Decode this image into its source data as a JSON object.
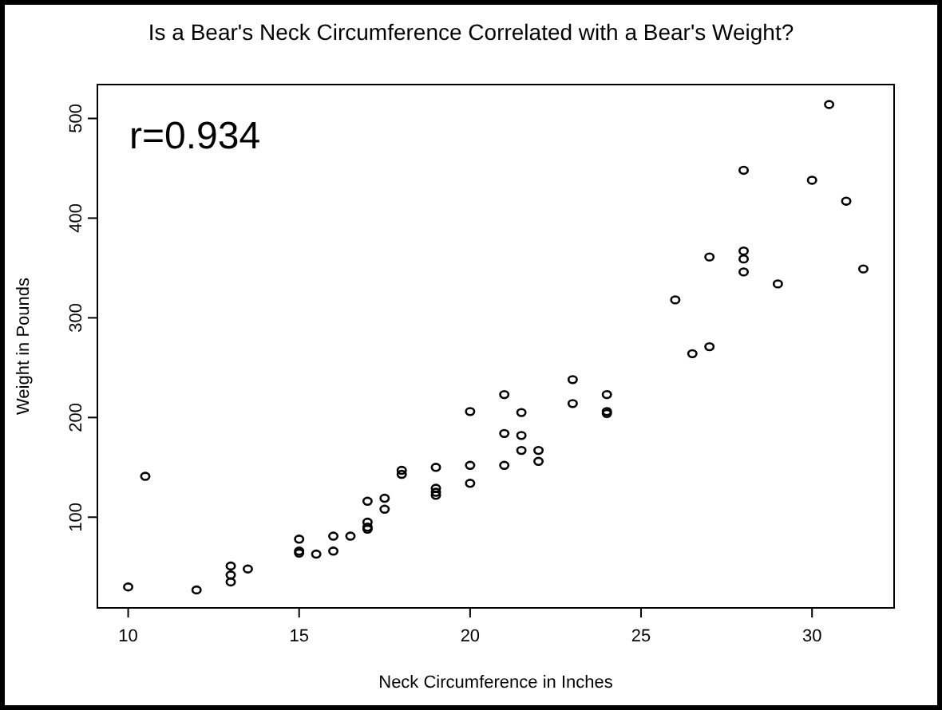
{
  "chart_data": {
    "type": "scatter",
    "title": "Is a Bear's Neck Circumference Correlated with a Bear's Weight?",
    "xlabel": "Neck Circumference in Inches",
    "ylabel": "Weight in Pounds",
    "annotations": [
      "r=0.934"
    ],
    "xlim": [
      9.1,
      32.4
    ],
    "ylim": [
      9,
      534
    ],
    "xticks": [
      10,
      15,
      20,
      25,
      30
    ],
    "yticks": [
      100,
      200,
      300,
      400,
      500
    ],
    "grid": false,
    "marker": "circle",
    "series": [
      {
        "color": "#000000",
        "x": [
          10,
          10.5,
          12,
          13,
          13,
          13,
          13.5,
          15,
          15,
          15,
          15.5,
          16,
          16,
          16.5,
          17,
          17,
          17,
          17,
          17.5,
          17.5,
          18,
          18,
          19,
          19,
          19,
          19,
          20,
          20,
          20,
          21,
          21,
          21,
          21.5,
          21.5,
          21.5,
          22,
          22,
          23,
          23,
          24,
          24,
          24,
          26,
          26.5,
          27,
          27,
          28,
          28,
          28,
          28,
          29,
          30,
          30.5,
          31,
          31.5
        ],
        "values": [
          30,
          141,
          27,
          51,
          42,
          35,
          48,
          78,
          66,
          64,
          63,
          81,
          66,
          81,
          116,
          95,
          90,
          88,
          119,
          108,
          147,
          143,
          150,
          129,
          125,
          122,
          206,
          152,
          134,
          223,
          184,
          152,
          205,
          182,
          167,
          167,
          156,
          238,
          214,
          223,
          206,
          204,
          318,
          264,
          361,
          271,
          448,
          367,
          359,
          346,
          334,
          438,
          514,
          417,
          349
        ]
      }
    ]
  }
}
